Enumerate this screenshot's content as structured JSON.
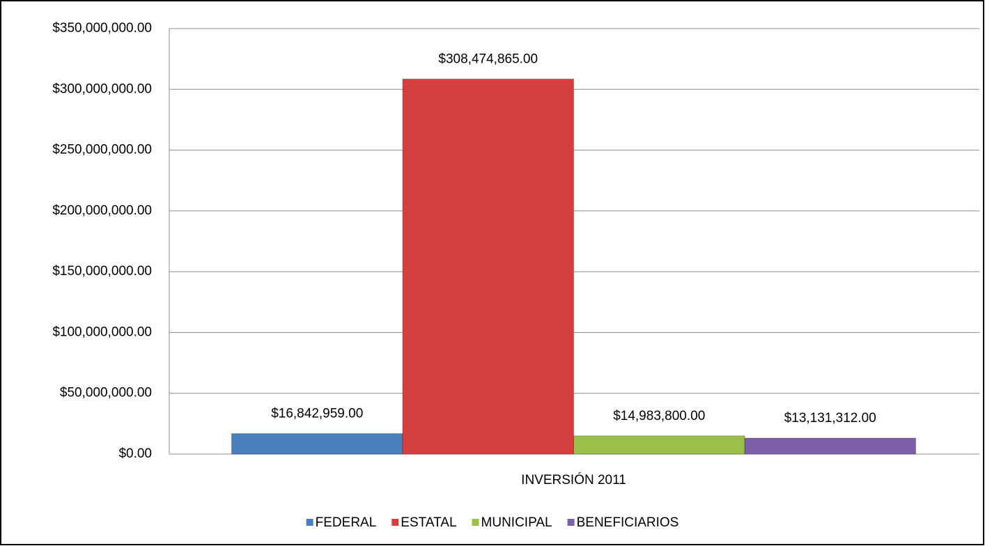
{
  "chart_data": {
    "type": "bar",
    "categories": [
      "INVERSIÓN 2011"
    ],
    "series": [
      {
        "name": "FEDERAL",
        "color": "#4a7ebf",
        "values": [
          16842959
        ],
        "value_labels": [
          "$16,842,959.00"
        ]
      },
      {
        "name": "ESTATAL",
        "color": "#d4403e",
        "values": [
          308474865
        ],
        "value_labels": [
          "$308,474,865.00"
        ]
      },
      {
        "name": "MUNICIPAL",
        "color": "#9bc04a",
        "values": [
          14983800
        ],
        "value_labels": [
          "$14,983,800.00"
        ]
      },
      {
        "name": "BENEFICIARIOS",
        "color": "#7d5ea8",
        "values": [
          13131312
        ],
        "value_labels": [
          "$13,131,312.00"
        ]
      }
    ],
    "ylim": [
      0,
      350000000
    ],
    "yticks": [
      {
        "value": 0,
        "label": "$0.00"
      },
      {
        "value": 50000000,
        "label": "$50,000,000.00"
      },
      {
        "value": 100000000,
        "label": "$100,000,000.00"
      },
      {
        "value": 150000000,
        "label": "$150,000,000.00"
      },
      {
        "value": 200000000,
        "label": "$200,000,000.00"
      },
      {
        "value": 250000000,
        "label": "$250,000,000.00"
      },
      {
        "value": 300000000,
        "label": "$300,000,000.00"
      },
      {
        "value": 350000000,
        "label": "$350,000,000.00"
      }
    ],
    "grid": true,
    "legend": "bottom"
  }
}
